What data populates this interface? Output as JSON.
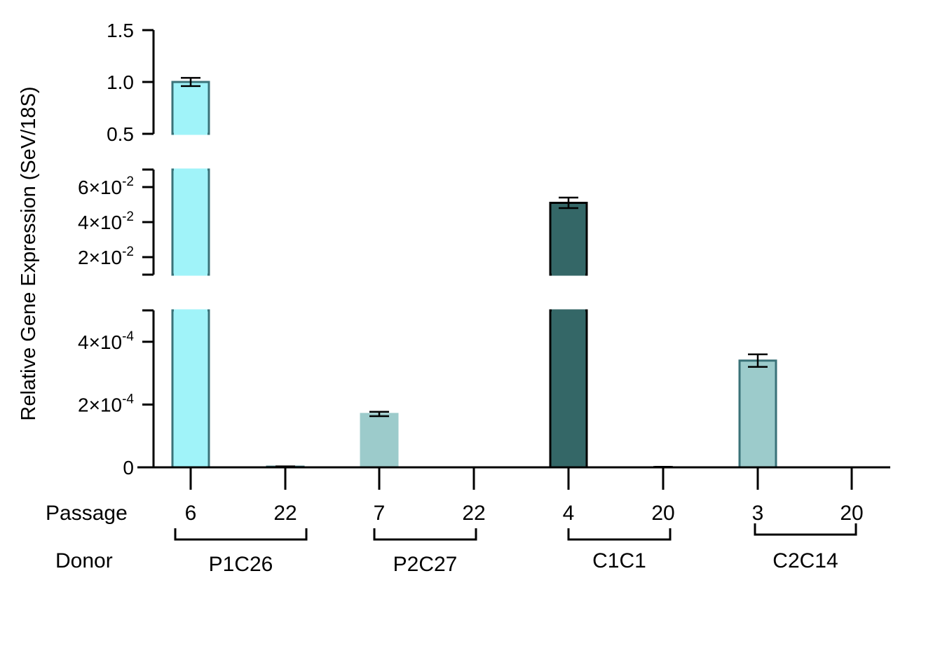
{
  "chart_data": {
    "type": "bar",
    "ylabel": "Relative Gene Expression (SeV/18S)",
    "row_labels": {
      "passage": "Passage",
      "donor": "Donor"
    },
    "y_axis": {
      "break": "broken axis (three segments)",
      "segments": [
        {
          "range": [
            0,
            0.0005
          ],
          "ticks": [
            {
              "value": 0,
              "base": "0",
              "exp": ""
            },
            {
              "value": 0.0002,
              "base": "2×10",
              "exp": "-4"
            },
            {
              "value": 0.0004,
              "base": "4×10",
              "exp": "-4"
            }
          ]
        },
        {
          "range": [
            0.01,
            0.07
          ],
          "ticks": [
            {
              "value": 0.02,
              "base": "2×10",
              "exp": "-2"
            },
            {
              "value": 0.04,
              "base": "4×10",
              "exp": "-2"
            },
            {
              "value": 0.06,
              "base": "6×10",
              "exp": "-2"
            }
          ]
        },
        {
          "range": [
            0.5,
            1.5
          ],
          "ticks": [
            {
              "value": 0.5,
              "base": "0.5",
              "exp": ""
            },
            {
              "value": 1.0,
              "base": "1.0",
              "exp": ""
            },
            {
              "value": 1.5,
              "base": "1.5",
              "exp": ""
            }
          ]
        }
      ]
    },
    "bars": [
      {
        "passage": "6",
        "donor": "P1C26",
        "value": 1.0,
        "error": 0.04,
        "fill": "#a0f3f9",
        "stroke": "#3a7278"
      },
      {
        "passage": "22",
        "donor": "P1C26",
        "value": 2e-06,
        "error": 1e-06,
        "fill": "#a0f3f9",
        "stroke": "#3a7278"
      },
      {
        "passage": "7",
        "donor": "P2C27",
        "value": 0.00017,
        "error": 7e-06,
        "fill": "#9ccbcb",
        "stroke": "#9ccbcb"
      },
      {
        "passage": "22",
        "donor": "P2C27",
        "value": 0,
        "error": 0,
        "fill": "#9ccbcb",
        "stroke": "#9ccbcb"
      },
      {
        "passage": "4",
        "donor": "C1C1",
        "value": 0.051,
        "error": 0.003,
        "fill": "#346767",
        "stroke": "#000000"
      },
      {
        "passage": "20",
        "donor": "C1C1",
        "value": 1e-06,
        "error": 5e-07,
        "fill": "#346767",
        "stroke": "#000000"
      },
      {
        "passage": "3",
        "donor": "C2C14",
        "value": 0.00034,
        "error": 2e-05,
        "fill": "#9ccbcb",
        "stroke": "#3a7278"
      },
      {
        "passage": "20",
        "donor": "C2C14",
        "value": 0,
        "error": 0,
        "fill": "#9ccbcb",
        "stroke": "#3a7278"
      }
    ],
    "donors": [
      "P1C26",
      "P2C27",
      "C1C1",
      "C2C14"
    ]
  }
}
